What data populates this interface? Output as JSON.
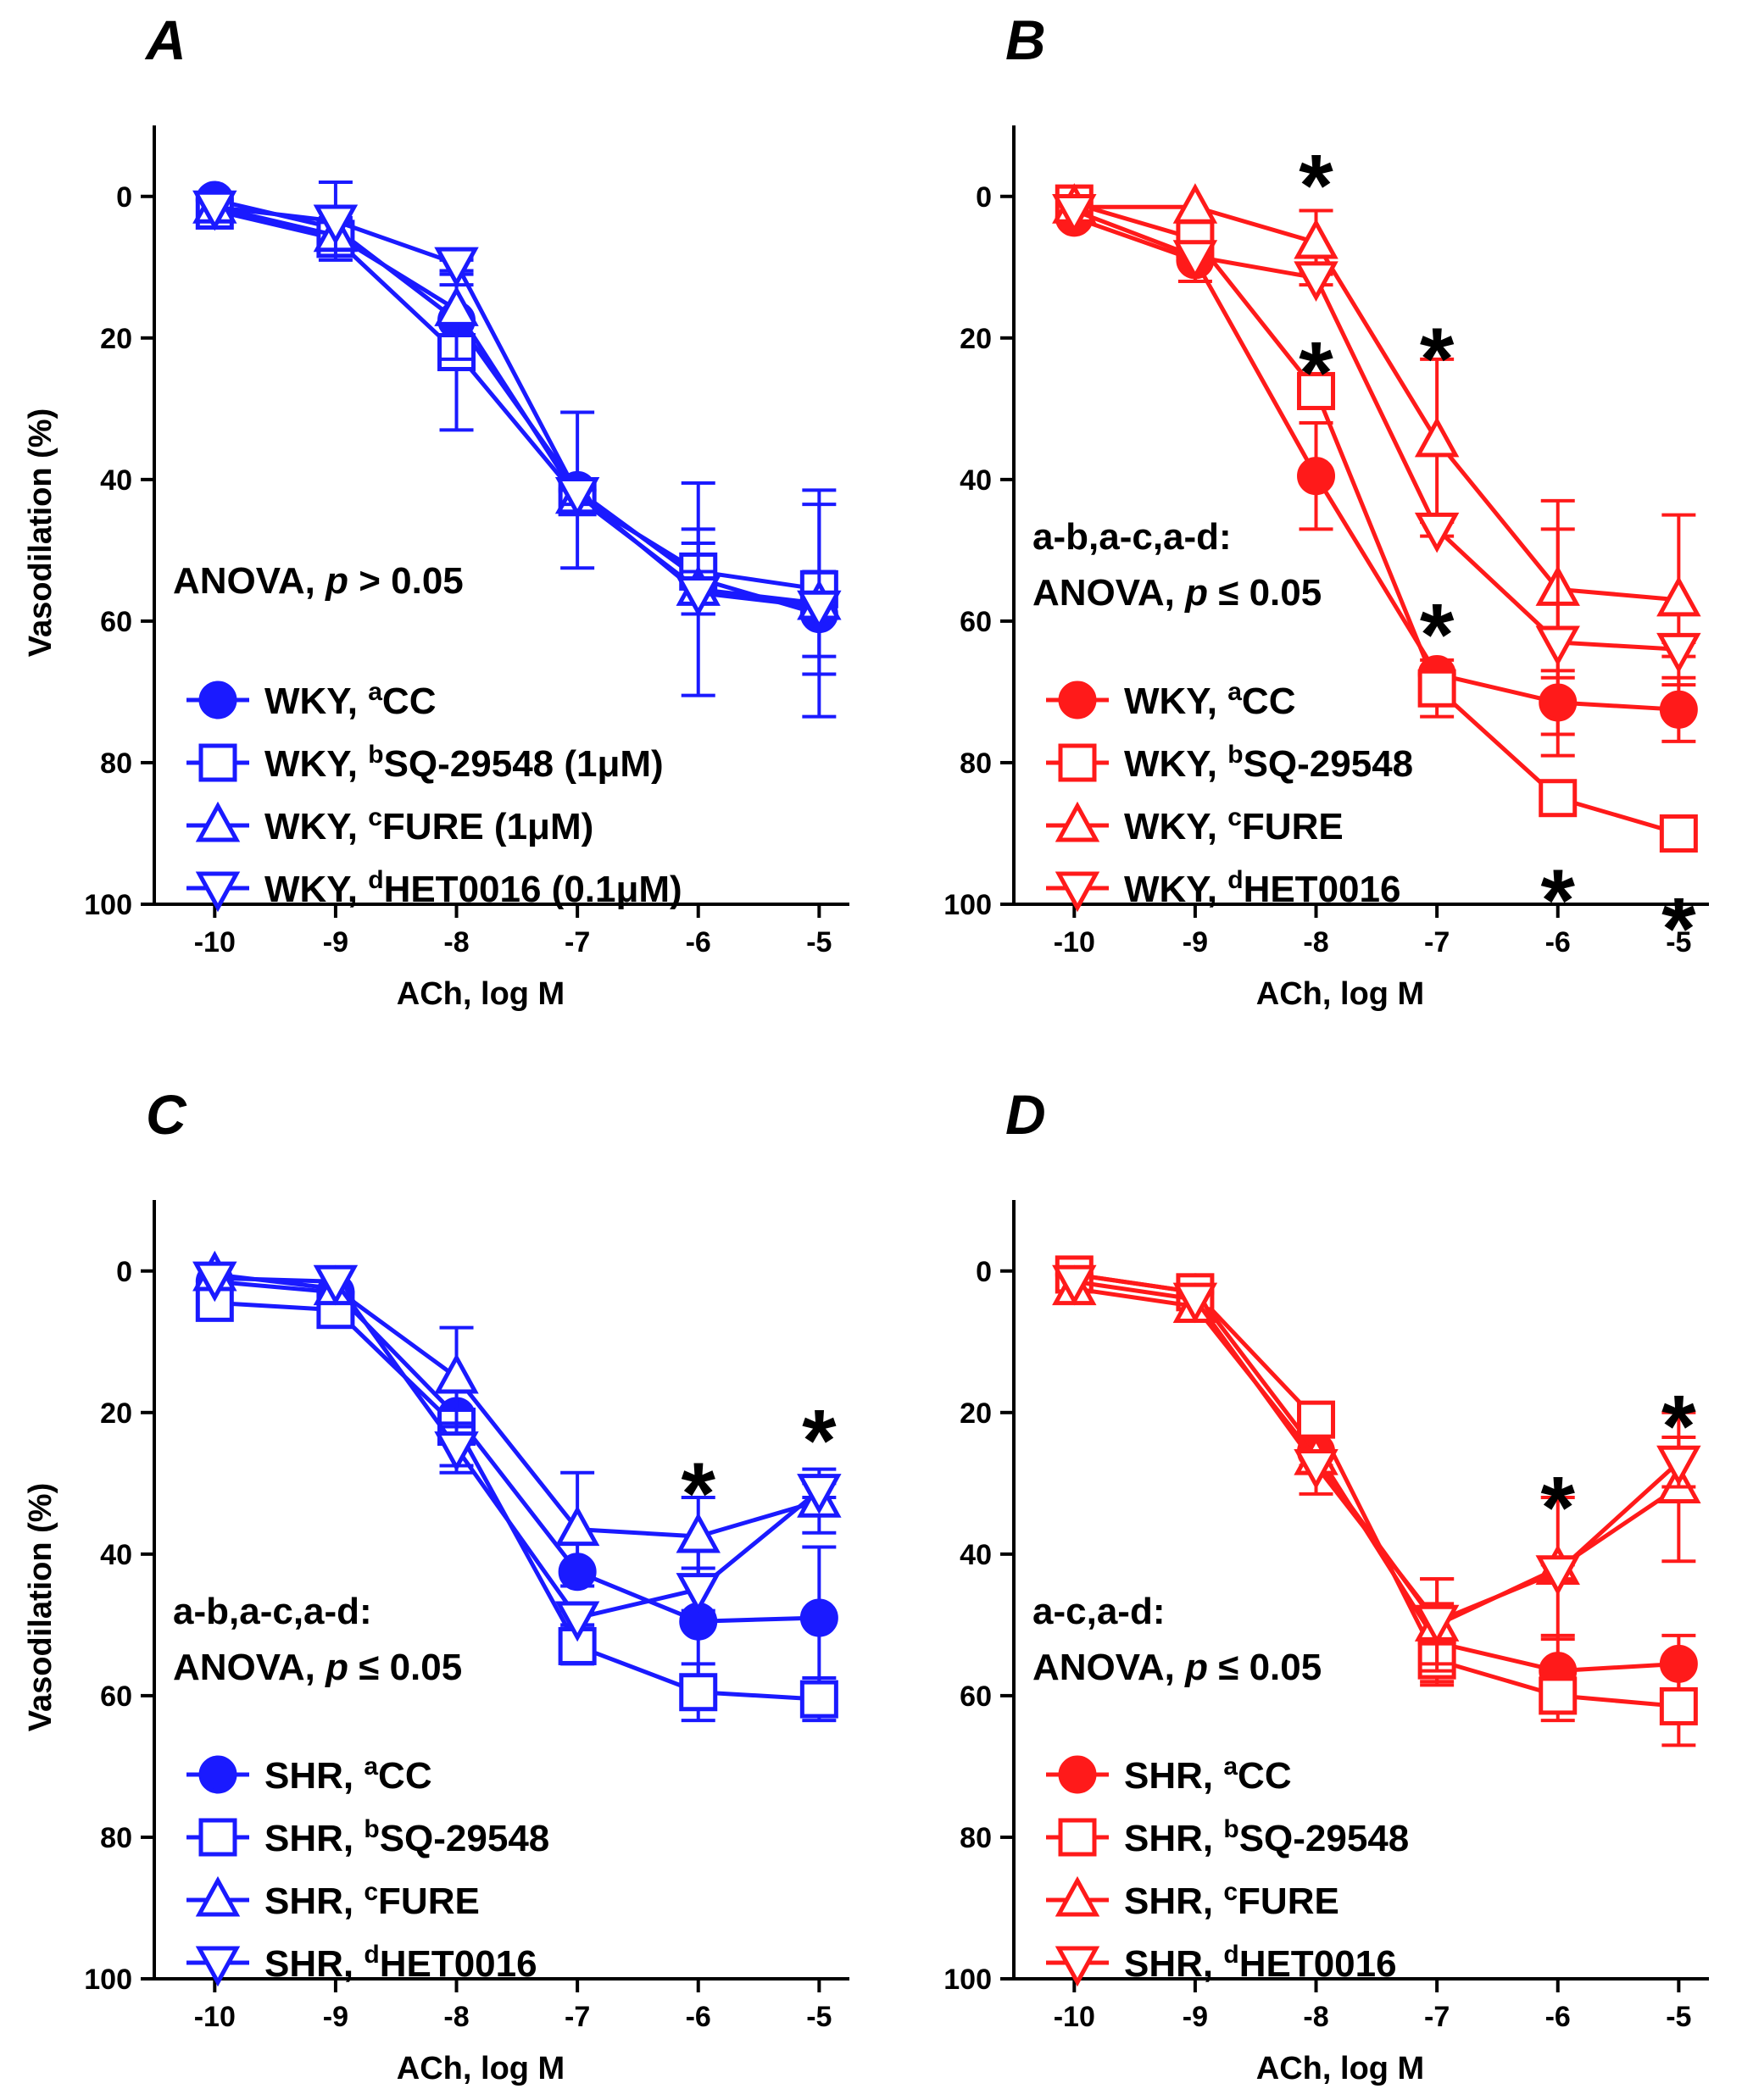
{
  "chart_data": [
    {
      "type": "line",
      "panel_label": "A",
      "color": "#1a1aff",
      "xlabel": "ACh, log M",
      "ylabel": "Vasodilation (%)",
      "x": [
        -10,
        -9,
        -8,
        -7,
        -6,
        -5
      ],
      "x_tick_labels": [
        "-10",
        "-9",
        "-8",
        "-7",
        "-6",
        "-5"
      ],
      "xlim": [
        -10.5,
        -4.75
      ],
      "ylim": [
        -5,
        100
      ],
      "y_inverted": true,
      "y_ticks": [
        0,
        20,
        40,
        60,
        80,
        100
      ],
      "y_tick_labels": [
        "0",
        "20",
        "40",
        "60",
        "80",
        "100"
      ],
      "annotation": {
        "lines": [
          {
            "pre": "ANOVA, ",
            "ital": "p",
            "post": " > 0.05"
          }
        ]
      },
      "series": [
        {
          "group": "WKY, ",
          "sup": "a",
          "name": "CC",
          "suffix": "",
          "marker": "circle",
          "filled": true,
          "values": [
            0.5,
            4.5,
            17.5,
            41.5,
            54,
            59
          ],
          "errors": [
            0.5,
            1.5,
            5,
            11,
            5,
            6
          ]
        },
        {
          "group": "WKY, ",
          "sup": "b",
          "name": "SQ-29548",
          "suffix": " (1μM)",
          "marker": "square",
          "filled": false,
          "values": [
            2,
            6,
            22,
            42.5,
            53,
            55.5
          ],
          "errors": [
            0.5,
            1.5,
            11,
            1.5,
            6,
            12
          ]
        },
        {
          "group": "WKY, ",
          "sup": "c",
          "name": "FURE",
          "suffix": " (1μM)",
          "marker": "triangle-up",
          "filled": false,
          "values": [
            1.5,
            5.5,
            16,
            42.5,
            55.5,
            57.5
          ],
          "errors": [
            0.5,
            2,
            7,
            1,
            15,
            16
          ]
        },
        {
          "group": "WKY, ",
          "sup": "d",
          "name": "HET0016",
          "suffix": " (0.1μM)",
          "marker": "triangle-down",
          "filled": false,
          "values": [
            1.5,
            3.5,
            9.5,
            42,
            56,
            58
          ],
          "errors": [
            0.5,
            5.5,
            1,
            1.5,
            3,
            2
          ]
        }
      ],
      "significance_stars": []
    },
    {
      "type": "line",
      "panel_label": "B",
      "color": "#ff1a1a",
      "xlabel": "ACh, log M",
      "ylabel": "",
      "x": [
        -10,
        -9,
        -8,
        -7,
        -6,
        -5
      ],
      "x_tick_labels": [
        "-10",
        "-9",
        "-8",
        "-7",
        "-6",
        "-5"
      ],
      "xlim": [
        -10.5,
        -4.75
      ],
      "ylim": [
        -5,
        100
      ],
      "y_inverted": true,
      "y_ticks": [
        0,
        20,
        40,
        60,
        80,
        100
      ],
      "y_tick_labels": [
        "0",
        "20",
        "40",
        "60",
        "80",
        "100"
      ],
      "annotation": {
        "lines": [
          {
            "pre": "a-b,a-c,a-d:",
            "ital": "",
            "post": ""
          },
          {
            "pre": "ANOVA, ",
            "ital": "p",
            "post": " ≤ 0.05"
          }
        ]
      },
      "series": [
        {
          "group": "WKY, ",
          "sup": "a",
          "name": "CC",
          "suffix": "",
          "marker": "circle",
          "filled": true,
          "values": [
            3,
            9,
            39.5,
            67.5,
            71.5,
            72.5
          ],
          "errors": [
            0.5,
            3,
            7.5,
            1,
            4.5,
            4.5
          ]
        },
        {
          "group": "WKY, ",
          "sup": "b",
          "name": "SQ-29548",
          "suffix": "",
          "marker": "square",
          "filled": false,
          "values": [
            1,
            6,
            27.5,
            69.5,
            85,
            90
          ],
          "errors": [
            0.5,
            1,
            1,
            4,
            1,
            1
          ]
        },
        {
          "group": "WKY, ",
          "sup": "c",
          "name": "FURE",
          "suffix": "",
          "marker": "triangle-up",
          "filled": false,
          "values": [
            1.5,
            1.5,
            6.5,
            34.5,
            55.5,
            57
          ],
          "errors": [
            0.5,
            0.5,
            4.5,
            11.5,
            12.5,
            12
          ]
        },
        {
          "group": "WKY, ",
          "sup": "d",
          "name": "HET0016",
          "suffix": "",
          "marker": "triangle-down",
          "filled": false,
          "values": [
            2,
            8.5,
            11.5,
            47,
            63,
            64
          ],
          "errors": [
            0.5,
            1,
            1,
            1,
            16,
            1
          ]
        }
      ],
      "significance_stars": [
        {
          "x": -8,
          "y": -4,
          "label": "*"
        },
        {
          "x": -8,
          "y": 22.5,
          "label": "*"
        },
        {
          "x": -7,
          "y": 20.5,
          "label": "*"
        },
        {
          "x": -7,
          "y": 59.5,
          "label": "*"
        },
        {
          "x": -6,
          "y": 97,
          "label": "*"
        },
        {
          "x": -5,
          "y": 101,
          "label": "*"
        }
      ]
    },
    {
      "type": "line",
      "panel_label": "C",
      "color": "#1a1aff",
      "xlabel": "ACh, log M",
      "ylabel": "Vasodilation (%)",
      "x": [
        -10,
        -9,
        -8,
        -7,
        -6,
        -5
      ],
      "x_tick_labels": [
        "-10",
        "-9",
        "-8",
        "-7",
        "-6",
        "-5"
      ],
      "xlim": [
        -10.5,
        -4.75
      ],
      "ylim": [
        -5,
        100
      ],
      "y_inverted": true,
      "y_ticks": [
        0,
        20,
        40,
        60,
        80,
        100
      ],
      "y_tick_labels": [
        "0",
        "20",
        "40",
        "60",
        "80",
        "100"
      ],
      "annotation": {
        "lines": [
          {
            "pre": "a-b,a-c,a-d:",
            "ital": "",
            "post": ""
          },
          {
            "pre": "ANOVA, ",
            "ital": "p",
            "post": " ≤ 0.05"
          }
        ]
      },
      "series": [
        {
          "group": "SHR, ",
          "sup": "a",
          "name": "CC",
          "suffix": "",
          "marker": "circle",
          "filled": true,
          "values": [
            1.5,
            3,
            20.5,
            42.5,
            49.5,
            49
          ],
          "errors": [
            0.5,
            0.5,
            3.5,
            1,
            10,
            10
          ]
        },
        {
          "group": "SHR, ",
          "sup": "b",
          "name": "SQ-29548",
          "suffix": "",
          "marker": "square",
          "filled": false,
          "values": [
            4.5,
            5.5,
            22,
            53,
            59.5,
            60.5
          ],
          "errors": [
            0.5,
            0.5,
            5.5,
            2.5,
            4,
            3
          ]
        },
        {
          "group": "SHR, ",
          "sup": "c",
          "name": "FURE",
          "suffix": "",
          "marker": "triangle-up",
          "filled": false,
          "values": [
            0.5,
            2.5,
            15,
            36.5,
            37.5,
            32.5
          ],
          "errors": [
            0.5,
            0.5,
            7,
            8,
            5.5,
            4.5
          ]
        },
        {
          "group": "SHR, ",
          "sup": "d",
          "name": "HET0016",
          "suffix": "",
          "marker": "triangle-down",
          "filled": false,
          "values": [
            1,
            1.5,
            25,
            49,
            45,
            31
          ],
          "errors": [
            0.5,
            0.5,
            3.5,
            1,
            3,
            1
          ]
        }
      ],
      "significance_stars": [
        {
          "x": -6,
          "y": 29,
          "label": "*"
        },
        {
          "x": -5,
          "y": 21.5,
          "label": "*"
        }
      ]
    },
    {
      "type": "line",
      "panel_label": "D",
      "color": "#ff1a1a",
      "xlabel": "ACh, log M",
      "ylabel": "",
      "x": [
        -10,
        -9,
        -8,
        -7,
        -6,
        -5
      ],
      "x_tick_labels": [
        "-10",
        "-9",
        "-8",
        "-7",
        "-6",
        "-5"
      ],
      "xlim": [
        -10.5,
        -4.75
      ],
      "ylim": [
        -5,
        100
      ],
      "y_inverted": true,
      "y_ticks": [
        0,
        20,
        40,
        60,
        80,
        100
      ],
      "y_tick_labels": [
        "0",
        "20",
        "40",
        "60",
        "80",
        "100"
      ],
      "annotation": {
        "lines": [
          {
            "pre": "a-c,a-d:",
            "ital": "",
            "post": ""
          },
          {
            "pre": "ANOVA, ",
            "ital": "p",
            "post": " ≤ 0.05"
          }
        ]
      },
      "series": [
        {
          "group": "SHR, ",
          "sup": "a",
          "name": "CC",
          "suffix": "",
          "marker": "circle",
          "filled": true,
          "values": [
            0.5,
            3,
            25.5,
            52.5,
            56.5,
            55.5
          ],
          "errors": [
            0.5,
            0.5,
            6,
            5.5,
            5,
            4
          ]
        },
        {
          "group": "SHR, ",
          "sup": "b",
          "name": "SQ-29548",
          "suffix": "",
          "marker": "square",
          "filled": false,
          "values": [
            0.5,
            3,
            21,
            55,
            60,
            61.5
          ],
          "errors": [
            0.5,
            0.5,
            1,
            3.5,
            3.5,
            5.5
          ]
        },
        {
          "group": "SHR, ",
          "sup": "c",
          "name": "FURE",
          "suffix": "",
          "marker": "triangle-up",
          "filled": false,
          "values": [
            2.5,
            5,
            26.5,
            50,
            42,
            30.5
          ],
          "errors": [
            0.5,
            0.5,
            1,
            6.5,
            10,
            10.5
          ]
        },
        {
          "group": "SHR, ",
          "sup": "d",
          "name": "HET0016",
          "suffix": "",
          "marker": "triangle-down",
          "filled": false,
          "values": [
            1.5,
            4,
            27.5,
            49.5,
            42.5,
            27
          ],
          "errors": [
            0.5,
            0.5,
            1,
            6,
            1,
            3.5
          ]
        }
      ],
      "significance_stars": [
        {
          "x": -6,
          "y": 31,
          "label": "*"
        },
        {
          "x": -5,
          "y": 19.5,
          "label": "*"
        }
      ]
    }
  ]
}
